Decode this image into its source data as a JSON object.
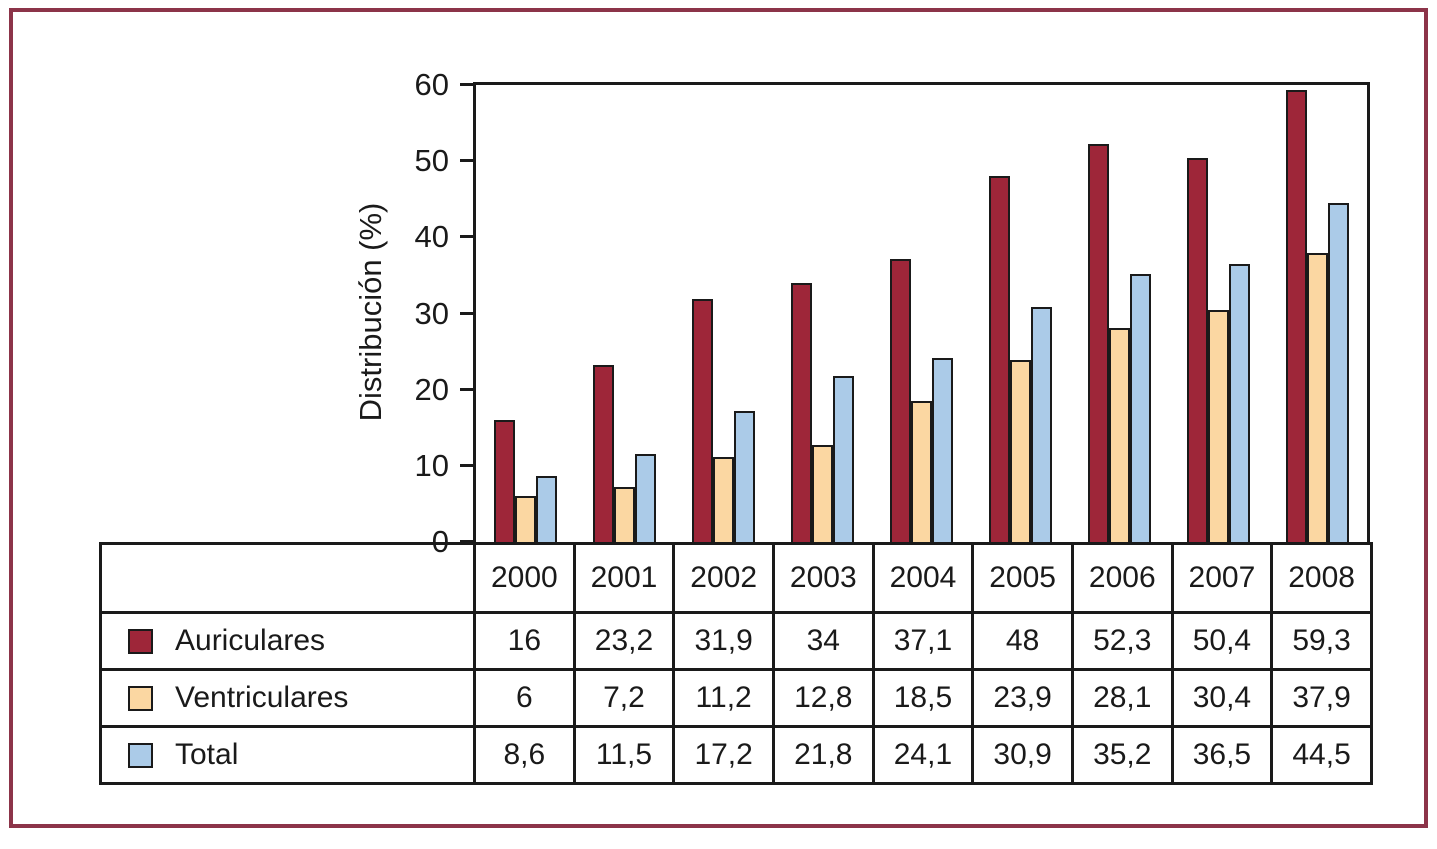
{
  "styles": {
    "frame_color": "#8C3449",
    "line_color": "#1a1a1a"
  },
  "chart_data": {
    "type": "bar",
    "title": "",
    "xlabel": "",
    "ylabel": "Distribución (%)",
    "ylim": [
      0,
      60
    ],
    "yticks": [
      0,
      10,
      20,
      30,
      40,
      50,
      60
    ],
    "grid": false,
    "legend_position": "table-rows-left",
    "categories": [
      "2000",
      "2001",
      "2002",
      "2003",
      "2004",
      "2005",
      "2006",
      "2007",
      "2008"
    ],
    "series": [
      {
        "name": "Auriculares",
        "color": "#9E2639",
        "values": [
          16,
          23.2,
          31.9,
          34,
          37.1,
          48,
          52.3,
          50.4,
          59.3
        ],
        "display": [
          "16",
          "23,2",
          "31,9",
          "34",
          "37,1",
          "48",
          "52,3",
          "50,4",
          "59,3"
        ]
      },
      {
        "name": "Ventriculares",
        "color": "#FBD7A2",
        "values": [
          6,
          7.2,
          11.2,
          12.8,
          18.5,
          23.9,
          28.1,
          30.4,
          37.9
        ],
        "display": [
          "6",
          "7,2",
          "11,2",
          "12,8",
          "18,5",
          "23,9",
          "28,1",
          "30,4",
          "37,9"
        ]
      },
      {
        "name": "Total",
        "color": "#ABCBE8",
        "values": [
          8.6,
          11.5,
          17.2,
          21.8,
          24.1,
          30.9,
          35.2,
          36.5,
          44.5
        ],
        "display": [
          "8,6",
          "11,5",
          "17,2",
          "21,8",
          "24,1",
          "30,9",
          "35,2",
          "36,5",
          "44,5"
        ]
      }
    ]
  }
}
